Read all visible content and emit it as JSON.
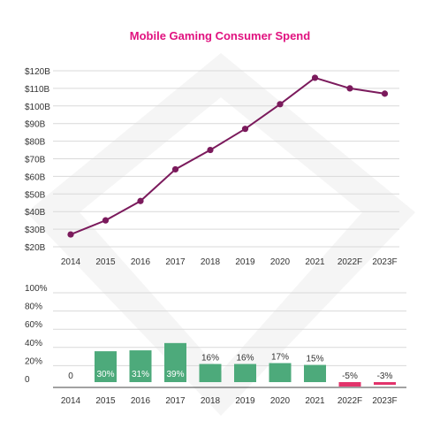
{
  "title": "Mobile Gaming Consumer Spend",
  "colors": {
    "title": "#e0117f",
    "line": "#7b1a5c",
    "bar_positive": "#4daa7b",
    "bar_negative": "#e2336b",
    "grid": "#d9d9d9",
    "text": "#333333",
    "watermark": "#ececec"
  },
  "chart_data": [
    {
      "type": "line",
      "title": "Mobile Gaming Consumer Spend",
      "categories": [
        "2014",
        "2015",
        "2016",
        "2017",
        "2018",
        "2019",
        "2020",
        "2021",
        "2022F",
        "2023F"
      ],
      "series": [
        {
          "values": [
            27,
            35,
            46,
            64,
            75,
            87,
            101,
            116,
            110,
            107
          ]
        }
      ],
      "ylim": [
        20,
        120
      ],
      "y_ticks": [
        "$20B",
        "$30B",
        "$40B",
        "$50B",
        "$60B",
        "$70B",
        "$80B",
        "$90B",
        "$100B",
        "$110B",
        "$120B"
      ],
      "grid": true,
      "legend": "none"
    },
    {
      "type": "bar",
      "categories": [
        "2014",
        "2015",
        "2016",
        "2017",
        "2018",
        "2019",
        "2020",
        "2021",
        "2022F",
        "2023F"
      ],
      "series": [
        {
          "values": [
            0,
            30,
            31,
            39,
            16,
            16,
            17,
            15,
            -5,
            -3
          ]
        }
      ],
      "data_labels": [
        "0",
        "30%",
        "31%",
        "39%",
        "16%",
        "16%",
        "17%",
        "15%",
        "-5%",
        "-3%"
      ],
      "ylim": [
        -5,
        100
      ],
      "y_ticks": [
        "0",
        "20%",
        "40%",
        "60%",
        "80%",
        "100%"
      ],
      "grid": true,
      "legend": "none"
    }
  ]
}
